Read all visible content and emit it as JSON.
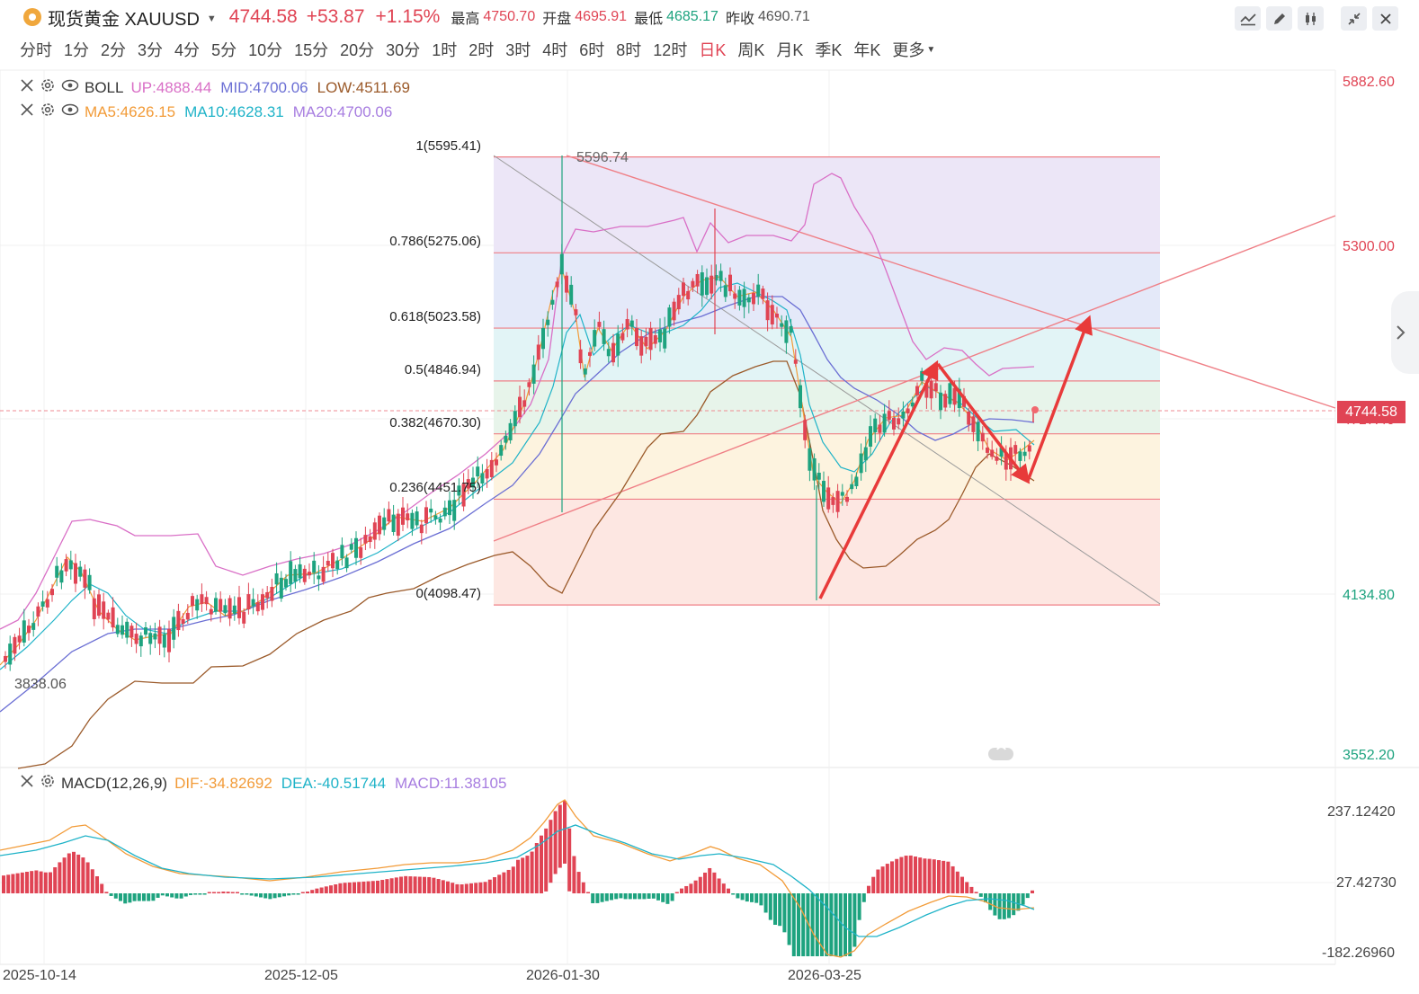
{
  "header": {
    "symbol": "现货黄金 XAUUSD",
    "price": "4744.58",
    "change": "+53.87",
    "change_pct": "+1.15%",
    "stats": [
      {
        "label": "最高",
        "value": "4750.70",
        "tone": "up"
      },
      {
        "label": "开盘",
        "value": "4695.91",
        "tone": "up"
      },
      {
        "label": "最低",
        "value": "4685.17",
        "tone": "dn"
      },
      {
        "label": "昨收",
        "value": "4690.71",
        "tone": "nu"
      }
    ],
    "tool_icons": [
      "line-tool-icon",
      "pen-tool-icon",
      "candle-style-icon",
      "collapse-icon",
      "close-icon"
    ]
  },
  "periods": {
    "items": [
      "分时",
      "1分",
      "2分",
      "3分",
      "4分",
      "5分",
      "10分",
      "15分",
      "20分",
      "30分",
      "1时",
      "2时",
      "3时",
      "4时",
      "6时",
      "8时",
      "12时",
      "日K",
      "周K",
      "月K",
      "季K",
      "年K",
      "更多"
    ],
    "active": "日K"
  },
  "legend": {
    "boll": {
      "name": "BOLL",
      "up": "UP:4888.44",
      "mid": "MID:4700.06",
      "low": "LOW:4511.69"
    },
    "ma": {
      "ma5": "MA5:4626.15",
      "ma10": "MA10:4628.31",
      "ma20": "MA20:4700.06"
    },
    "macd": {
      "name": "MACD(12,26,9)",
      "dif": "DIF:-34.82692",
      "dea": "DEA:-40.51744",
      "macd": "MACD:11.38105"
    }
  },
  "colors": {
    "up": "#e04454",
    "down": "#1ea37f",
    "boll_up": "#d96fc6",
    "boll_mid": "#6b6fd4",
    "boll_low": "#9b5a2a",
    "ma5": "#f29b38",
    "ma10": "#1fb3c8",
    "ma20": "#a77de0",
    "dif": "#f29b38",
    "dea": "#1fb3c8",
    "macd": "#a77de0"
  },
  "price_axis": [
    "5882.60",
    "5300.00",
    "4717.40",
    "4134.80",
    "3552.20"
  ],
  "macd_axis": [
    "237.12420",
    "27.42730",
    "-182.26960"
  ],
  "date_axis": [
    "2025-10-14",
    "2025-12-05",
    "2026-01-30",
    "2026-03-25"
  ],
  "last_price_tag": "4744.58",
  "annotations": {
    "high_mark": "5596.74",
    "low_mark": "3838.06"
  },
  "chart_data": [
    {
      "type": "candlestick",
      "title": "现货黄金 XAUUSD 日K",
      "fibonacci_levels": [
        {
          "label": "1(5595.41)",
          "ratio": 1,
          "price": 5595.41
        },
        {
          "label": "0.786(5275.06)",
          "ratio": 0.786,
          "price": 5275.06
        },
        {
          "label": "0.618(5023.58)",
          "ratio": 0.618,
          "price": 5023.58
        },
        {
          "label": "0.5(4846.94)",
          "ratio": 0.5,
          "price": 4846.94
        },
        {
          "label": "0.382(4670.30)",
          "ratio": 0.382,
          "price": 4670.3
        },
        {
          "label": "0.236(4451.75)",
          "ratio": 0.236,
          "price": 4451.75
        },
        {
          "label": "0(4098.47)",
          "ratio": 0,
          "price": 4098.47
        }
      ],
      "ylim": [
        3552.2,
        5882.6
      ]
    },
    {
      "type": "bar",
      "title": "MACD(12,26,9)",
      "ylim": [
        -182.2696,
        237.1242
      ]
    }
  ]
}
